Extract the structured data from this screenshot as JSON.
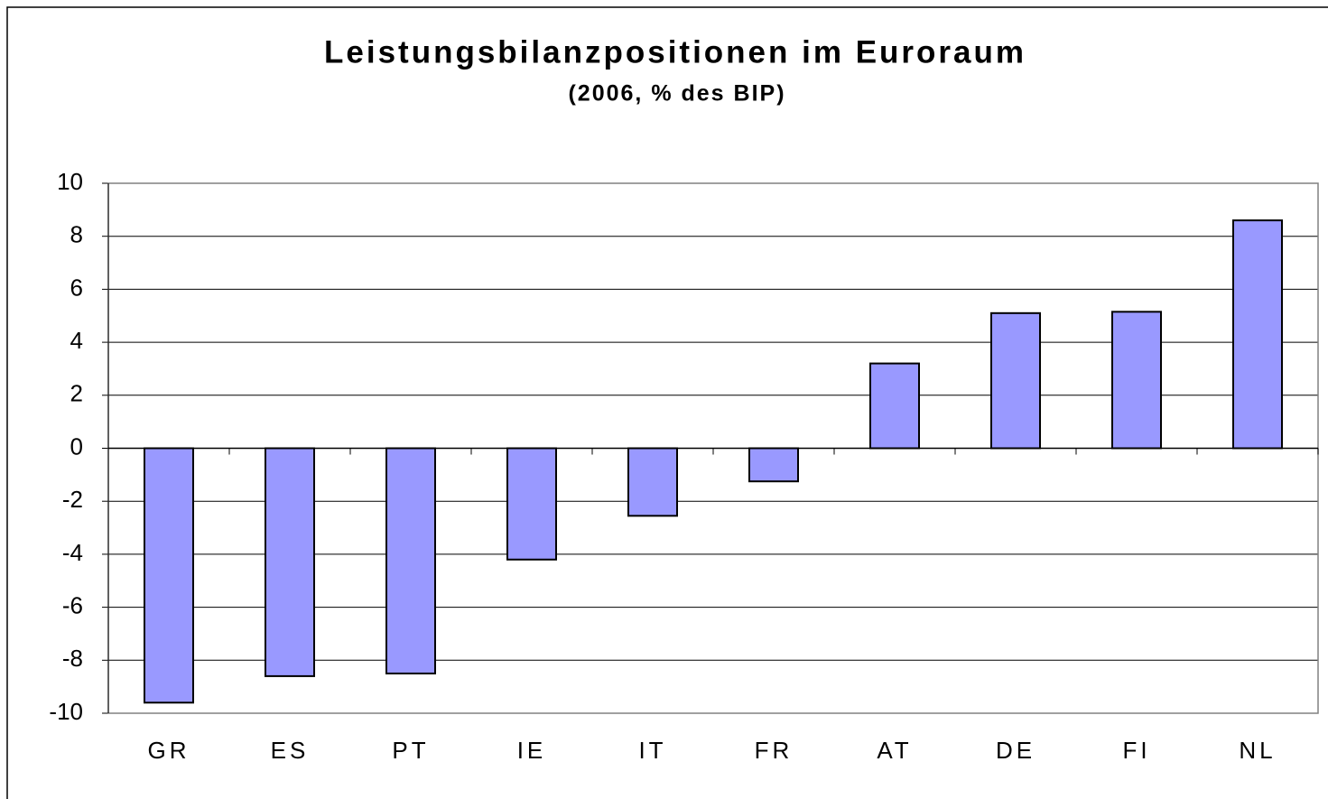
{
  "chart_data": {
    "type": "bar",
    "title": "Leistungsbilanzpositionen im Euroraum",
    "subtitle": "(2006, % des BIP)",
    "categories": [
      "GR",
      "ES",
      "PT",
      "IE",
      "IT",
      "FR",
      "AT",
      "DE",
      "FI",
      "NL"
    ],
    "values": [
      -9.6,
      -8.6,
      -8.5,
      -4.2,
      -2.55,
      -1.25,
      3.2,
      5.1,
      5.15,
      8.6
    ],
    "color": "#9999ff",
    "ylim": [
      -10,
      10
    ],
    "yticks": [
      -10,
      -8,
      -6,
      -4,
      -2,
      0,
      2,
      4,
      6,
      8,
      10
    ],
    "grid": true
  }
}
